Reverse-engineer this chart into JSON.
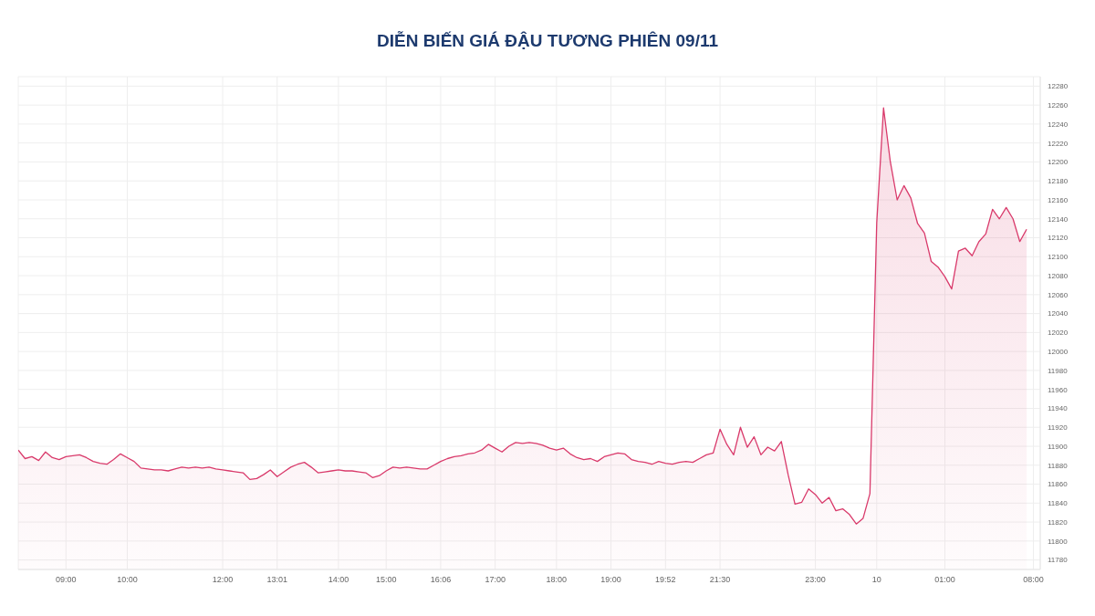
{
  "chart_data": {
    "type": "area",
    "title": "DIỄN BIẾN GIÁ ĐẬU TƯƠNG PHIÊN 09/11",
    "categories": [
      null,
      null,
      null,
      null,
      null,
      null,
      null,
      "09:00",
      null,
      null,
      null,
      null,
      null,
      null,
      null,
      null,
      "10:00",
      null,
      null,
      null,
      null,
      null,
      null,
      null,
      null,
      null,
      null,
      null,
      null,
      null,
      "12:00",
      null,
      null,
      null,
      null,
      null,
      null,
      null,
      "13:01",
      null,
      null,
      null,
      null,
      null,
      null,
      null,
      null,
      "14:00",
      null,
      null,
      null,
      null,
      null,
      null,
      "15:00",
      null,
      null,
      null,
      null,
      null,
      null,
      null,
      "16:06",
      null,
      null,
      null,
      null,
      null,
      null,
      null,
      "17:00",
      null,
      null,
      null,
      null,
      null,
      null,
      null,
      null,
      "18:00",
      null,
      null,
      null,
      null,
      null,
      null,
      null,
      "19:00",
      null,
      null,
      null,
      null,
      null,
      null,
      null,
      "19:52",
      null,
      null,
      null,
      null,
      null,
      null,
      null,
      "21:30",
      null,
      null,
      null,
      null,
      null,
      null,
      null,
      null,
      null,
      null,
      null,
      null,
      null,
      "23:00",
      null,
      null,
      null,
      null,
      null,
      null,
      null,
      null,
      "10",
      null,
      null,
      null,
      null,
      null,
      null,
      null,
      null,
      null,
      "01:00",
      null,
      null,
      null,
      null,
      null,
      null,
      null,
      null,
      null,
      null,
      null,
      null,
      "08:00",
      null
    ],
    "series": [
      {
        "color": "#d93a6b",
        "values": [
          11896,
          11887,
          11889,
          11885,
          11894,
          11888,
          11886,
          11889,
          11890,
          11891,
          11888,
          11884,
          11882,
          11881,
          11886,
          11892,
          11888,
          11884,
          11877,
          11876,
          11875,
          11875,
          11874,
          11876,
          11878,
          11877,
          11878,
          11877,
          11878,
          11876,
          11875,
          11874,
          11873,
          11872,
          11865,
          11866,
          11870,
          11875,
          11868,
          11873,
          11878,
          11881,
          11883,
          11878,
          11872,
          11873,
          11874,
          11875,
          11874,
          11874,
          11873,
          11872,
          11867,
          11869,
          11874,
          11878,
          11877,
          11878,
          11877,
          11876,
          11876,
          11880,
          11884,
          11887,
          11889,
          11890,
          11892,
          11893,
          11896,
          11902,
          11898,
          11894,
          11900,
          11904,
          11903,
          11904,
          11903,
          11901,
          11898,
          11896,
          11898,
          11892,
          11888,
          11886,
          11887,
          11884,
          11889,
          11891,
          11893,
          11892,
          11886,
          11884,
          11883,
          11881,
          11884,
          11882,
          11881,
          11883,
          11884,
          11883,
          11887,
          11891,
          11893,
          11918,
          11902,
          11891,
          11920,
          11899,
          11910,
          11891,
          11899,
          11895,
          11905,
          11870,
          11839,
          11841,
          11855,
          11849,
          11840,
          11846,
          11832,
          11834,
          11828,
          11818,
          11824,
          11850,
          12136,
          12257,
          12200,
          12160,
          12175,
          12162,
          12135,
          12125,
          12095,
          12089,
          12079,
          12066,
          12106,
          12109,
          12101,
          12116,
          12124,
          12150,
          12140,
          12152,
          12140,
          12116,
          12129,
          null,
          null
        ]
      }
    ],
    "ylim": [
      11770,
      12290
    ],
    "yticks": [
      11780,
      11800,
      11820,
      11840,
      11860,
      11880,
      11900,
      11920,
      11940,
      11960,
      11980,
      12000,
      12020,
      12040,
      12060,
      12080,
      12100,
      12120,
      12140,
      12160,
      12180,
      12200,
      12220,
      12240,
      12260,
      12280
    ],
    "grid": true
  }
}
